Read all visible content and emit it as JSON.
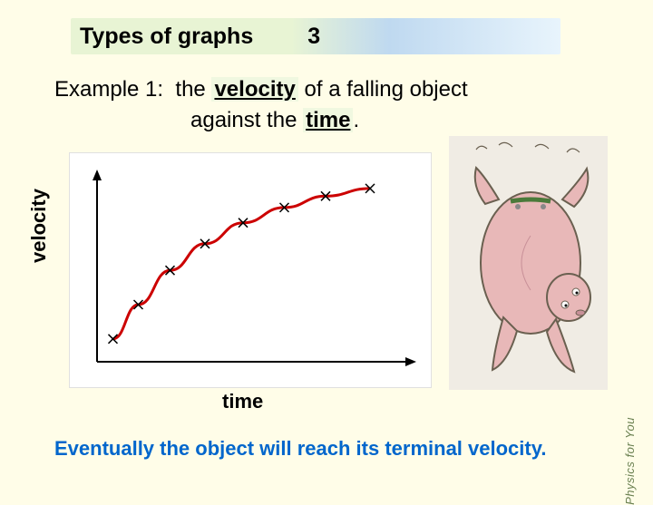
{
  "title": {
    "text": "Types of graphs",
    "number": "3"
  },
  "example": {
    "prefix": "Example 1: ",
    "seg1": "the",
    "word1": "velocity",
    "seg2": "of a falling object",
    "seg3": "against the",
    "word2": "time",
    "period": "."
  },
  "chart": {
    "type": "line",
    "ylabel": "velocity",
    "xlabel": "time",
    "background_color": "#ffffff",
    "axis_color": "#000000",
    "curve_color": "#cc0000",
    "marker": "x",
    "marker_color": "#000000",
    "curve_width": 3,
    "xlim": [
      0,
      10
    ],
    "ylim": [
      0,
      10
    ],
    "points": [
      {
        "x": 0.5,
        "y": 1.2
      },
      {
        "x": 1.3,
        "y": 3.0
      },
      {
        "x": 2.3,
        "y": 4.8
      },
      {
        "x": 3.4,
        "y": 6.2
      },
      {
        "x": 4.6,
        "y": 7.3
      },
      {
        "x": 5.9,
        "y": 8.1
      },
      {
        "x": 7.2,
        "y": 8.7
      },
      {
        "x": 8.6,
        "y": 9.1
      }
    ]
  },
  "footer": "Eventually the object will reach its terminal velocity.",
  "credit": "Physics for You",
  "illustration": {
    "desc": "cartoon falling figure",
    "bg": "#f0ece4",
    "body_color": "#e8b8b8",
    "outline": "#6a6050"
  }
}
